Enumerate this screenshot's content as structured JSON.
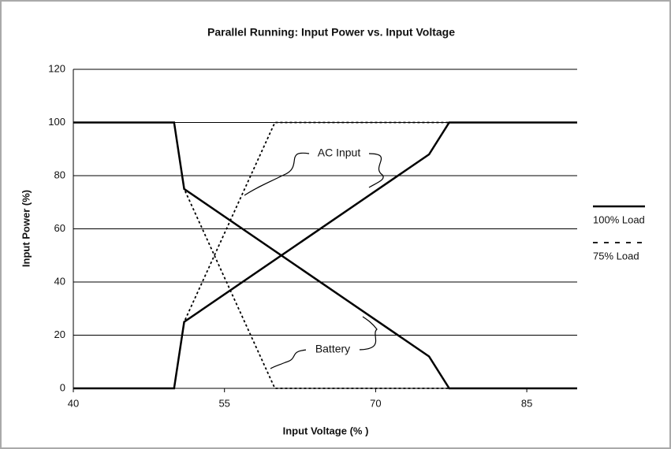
{
  "chart_data": {
    "type": "line",
    "title": "Parallel Running:  Input Power vs. Input Voltage",
    "x_label": "Input Voltage (% )",
    "y_label": "Input Power (%)",
    "xlim": [
      40,
      90
    ],
    "xticks": [
      40,
      55,
      70,
      85
    ],
    "ylim": [
      0,
      120
    ],
    "yticks": [
      0,
      20,
      40,
      60,
      80,
      100,
      120
    ],
    "grid": true,
    "legend": "right",
    "annotations": [
      "AC Input",
      "Battery"
    ],
    "series": [
      {
        "name": "75% Load",
        "color": "#000000",
        "dash": "dotted",
        "x": [
          40,
          50,
          51,
          60,
          90
        ],
        "values": [
          0,
          0,
          25,
          100,
          100
        ]
      },
      {
        "name": "75% Load",
        "color": "#000000",
        "dash": "dotted",
        "x": [
          40,
          50,
          51,
          60,
          90
        ],
        "values": [
          100,
          100,
          75,
          0,
          0
        ]
      },
      {
        "name": "100% Load",
        "color": "#000000",
        "dash": "solid",
        "x": [
          40,
          50,
          51,
          75.3,
          77.3,
          90
        ],
        "values": [
          0,
          0,
          25,
          88,
          100,
          100
        ]
      },
      {
        "name": "100% Load",
        "color": "#000000",
        "dash": "solid",
        "x": [
          40,
          50,
          51,
          75.3,
          77.3,
          90
        ],
        "values": [
          100,
          100,
          75,
          12,
          0,
          0
        ]
      }
    ]
  }
}
